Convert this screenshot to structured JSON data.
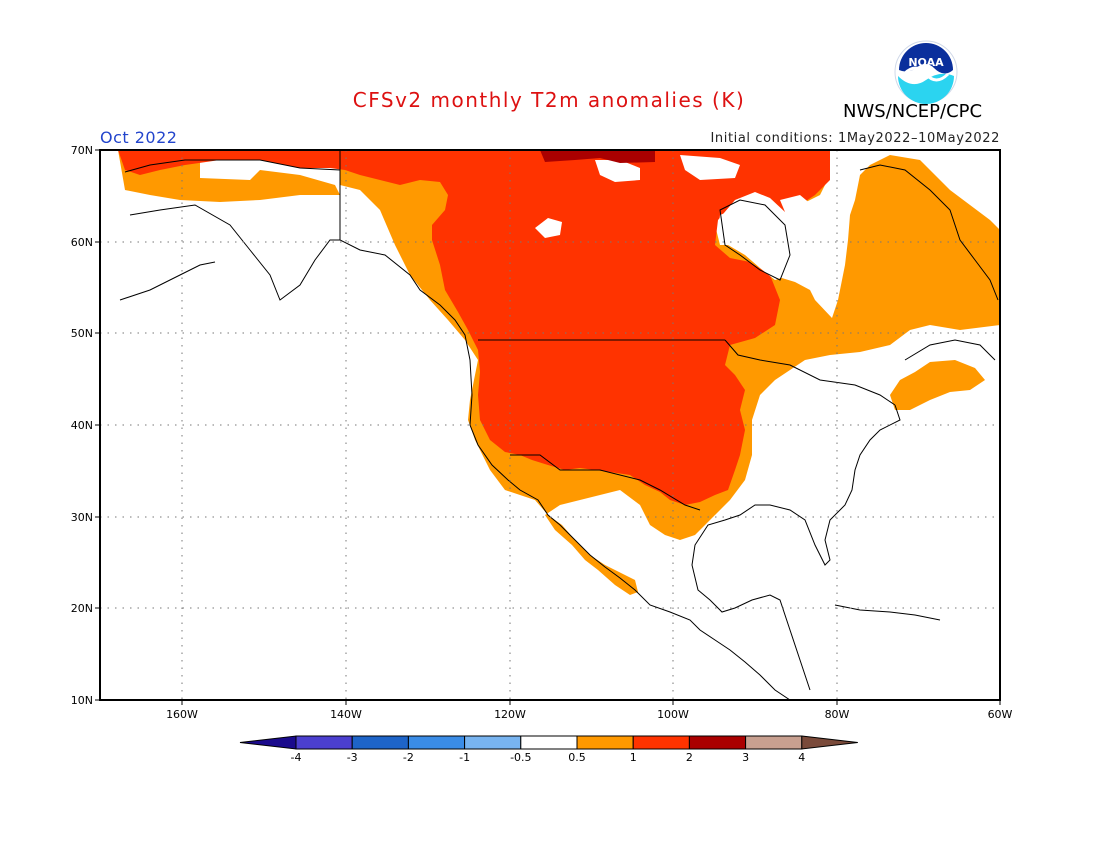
{
  "title": "CFSv2 monthly T2m anomalies (K)",
  "agency": "NWS/NCEP/CPC",
  "logo_text": "NOAA",
  "month": "Oct 2022",
  "initial_conditions": "Initial conditions: 1May2022–10May2022",
  "colors": {
    "title": "#dd1111",
    "month": "#2244cc",
    "warm_05_1": "#ff9900",
    "warm_1_2": "#ff3300",
    "warm_2_3": "#aa0000"
  },
  "map": {
    "lat_labels": [
      "70N",
      "60N",
      "50N",
      "40N",
      "30N",
      "20N",
      "10N"
    ],
    "lon_labels": [
      "160W",
      "140W",
      "120W",
      "100W",
      "80W",
      "60W"
    ],
    "lat_range": [
      10,
      70
    ],
    "lon_range": [
      -171,
      -60
    ]
  },
  "colorbar": {
    "colors": [
      "#1a0a8c",
      "#4b3fcf",
      "#1e64c8",
      "#3a8ce6",
      "#78b4f0",
      "#ffffff",
      "#ff9900",
      "#ff3300",
      "#aa0000",
      "#c8a090",
      "#7a4a3a"
    ],
    "labels": [
      "-4",
      "-3",
      "-2",
      "-1",
      "-0.5",
      "0.5",
      "1",
      "2",
      "3",
      "4"
    ]
  }
}
